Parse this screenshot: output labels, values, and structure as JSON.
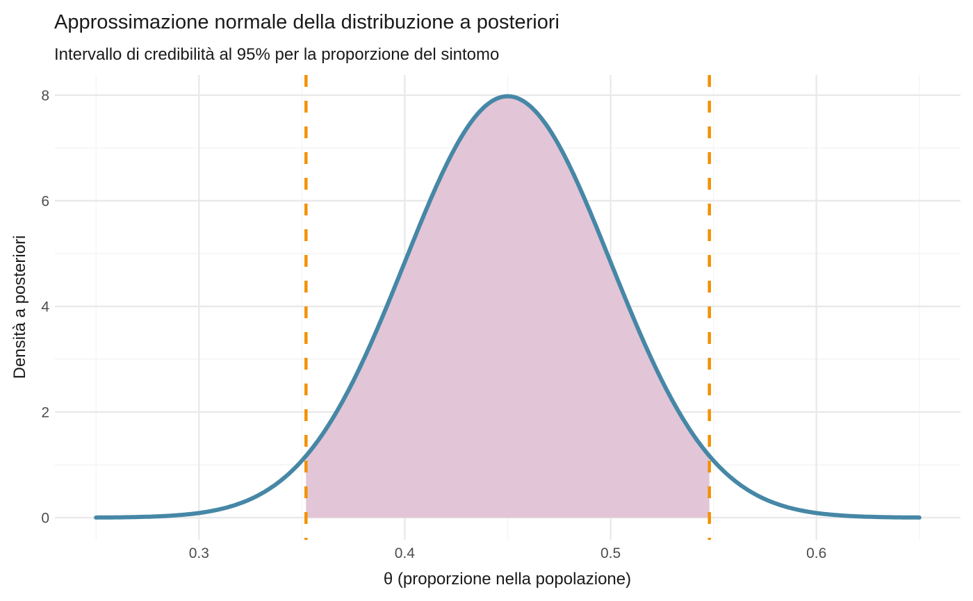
{
  "chart_data": {
    "type": "area",
    "title": "Approssimazione normale della distribuzione a posteriori",
    "subtitle": "Intervallo di credibilità al 95% per la proporzione del sintomo",
    "xlabel": "θ (proporzione nella popolazione)",
    "ylabel": "Densità a posteriori",
    "x_ticks": [
      0.3,
      0.4,
      0.5,
      0.6
    ],
    "x_tick_labels": [
      "0.3",
      "0.4",
      "0.5",
      "0.6"
    ],
    "x_minor_ticks": [
      0.25,
      0.35,
      0.45,
      0.55,
      0.65
    ],
    "y_ticks": [
      0,
      2,
      4,
      6,
      8
    ],
    "y_tick_labels": [
      "0",
      "2",
      "4",
      "6",
      "8"
    ],
    "y_minor_ticks": [
      1,
      3,
      5,
      7
    ],
    "xlim": [
      0.23,
      0.67
    ],
    "ylim": [
      -0.42,
      8.38
    ],
    "grid": "major+minor",
    "legend": "none",
    "curve": {
      "shape": "normal-density",
      "mean": 0.45,
      "sd": 0.05,
      "x_start": 0.25,
      "x_end": 0.65,
      "peak_density": 7.98,
      "color": "#4687A6",
      "linewidth": 6
    },
    "credible_interval": {
      "level": "95%",
      "lower": 0.352,
      "upper": 0.548,
      "fill_color": "#E2C5D6",
      "line_color": "#F29100",
      "line_style": "dashed"
    },
    "colors": {
      "background": "#FFFFFF",
      "grid_major": "#E9E9E9",
      "grid_minor": "#F4F4F4",
      "title_text": "#1A1A1A",
      "axis_title_text": "#1A1A1A",
      "axis_text": "#4D4D4D"
    }
  }
}
